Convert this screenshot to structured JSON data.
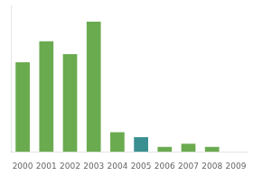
{
  "chart_data": {
    "type": "bar",
    "categories": [
      "2000",
      "2001",
      "2002",
      "2003",
      "2004",
      "2005",
      "2006",
      "2007",
      "2008",
      "2009"
    ],
    "values": [
      55,
      68,
      60,
      80,
      12,
      9,
      3,
      5,
      3,
      0
    ],
    "colors": [
      "#6aab4f",
      "#6aab4f",
      "#6aab4f",
      "#6aab4f",
      "#6aab4f",
      "#3a9090",
      "#6aab4f",
      "#6aab4f",
      "#6aab4f",
      "#6aab4f"
    ],
    "ylim": [
      0,
      90
    ],
    "yticks": [],
    "grid": false,
    "tick_labels": "x"
  }
}
